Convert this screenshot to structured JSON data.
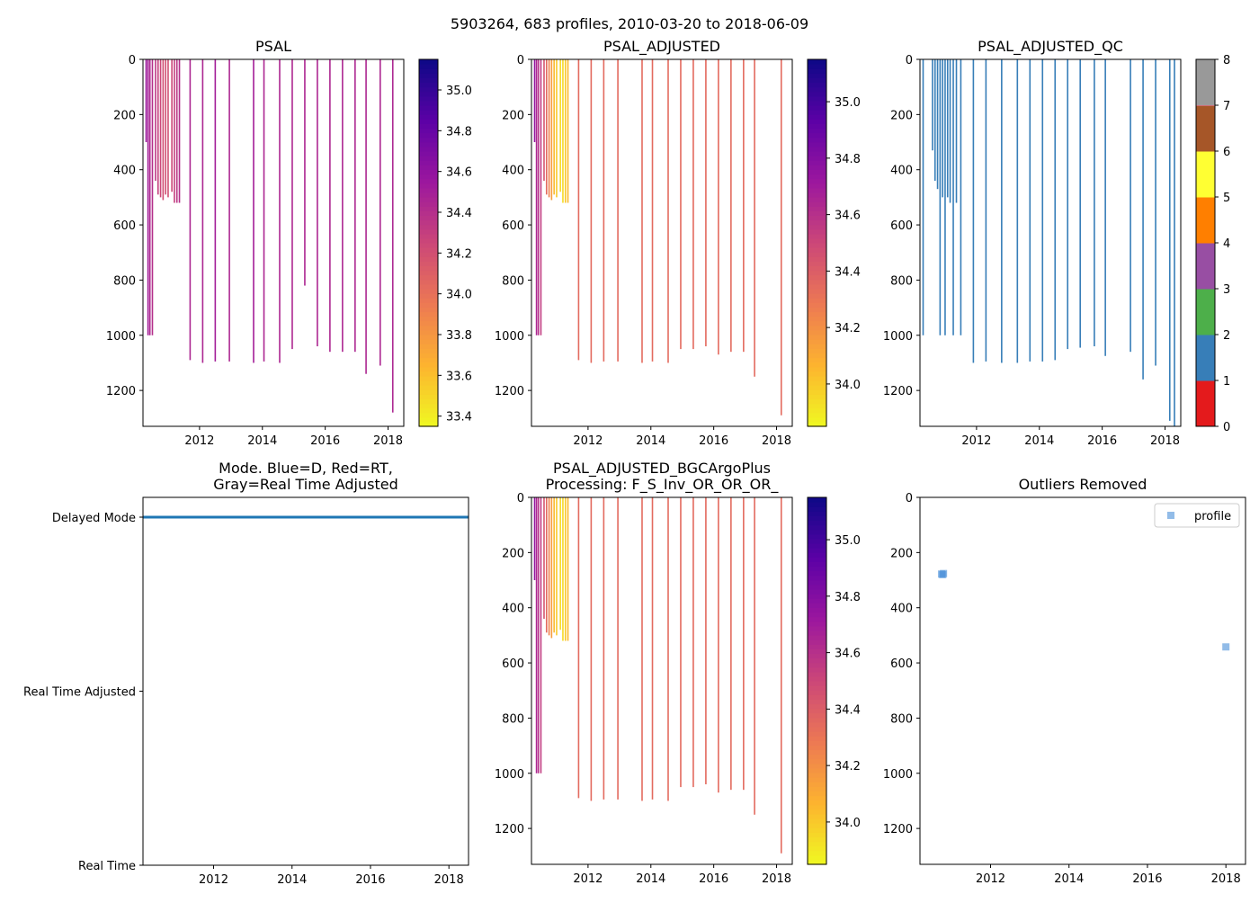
{
  "suptitle": "5903264, 683 profiles, 2010-03-20 to 2018-06-09",
  "colors": {
    "qc_blue": "#377eb8",
    "mode_line": "#1f77b4",
    "outlier_marker": "#4a90d9",
    "plasma_stops": [
      "#f0f921",
      "#fdb42f",
      "#ed7953",
      "#cc4778",
      "#9c179e",
      "#5c01a6",
      "#0d0887"
    ],
    "qc_classes": [
      "#e41a1c",
      "#377eb8",
      "#4daf4a",
      "#984ea3",
      "#ff7f00",
      "#ffff33",
      "#a65628",
      "#f781bf",
      "#999999"
    ]
  },
  "chart_data": [
    {
      "id": "psal",
      "type": "profile_section",
      "title": "PSAL",
      "xlim": [
        2010.2,
        2018.5
      ],
      "ylim": [
        1330,
        0
      ],
      "xticks": [
        "2012",
        "2014",
        "2016",
        "2018"
      ],
      "yticks": [
        "0",
        "200",
        "400",
        "600",
        "800",
        "1000",
        "1200"
      ],
      "colorbar": {
        "cmap": "plasma",
        "range": [
          33.35,
          35.15
        ],
        "ticks": [
          "33.4",
          "33.6",
          "33.8",
          "34.0",
          "34.2",
          "34.4",
          "34.6",
          "34.8",
          "35.0"
        ]
      },
      "profiles": [
        {
          "date": 2010.3,
          "depth": 300,
          "value": 34.55
        },
        {
          "date": 2010.36,
          "depth": 1000,
          "value": 34.5
        },
        {
          "date": 2010.42,
          "depth": 1000,
          "value": 34.45
        },
        {
          "date": 2010.5,
          "depth": 1000,
          "value": 34.4
        },
        {
          "date": 2010.6,
          "depth": 440,
          "value": 34.35
        },
        {
          "date": 2010.68,
          "depth": 490,
          "value": 34.3
        },
        {
          "date": 2010.76,
          "depth": 500,
          "value": 34.25
        },
        {
          "date": 2010.84,
          "depth": 510,
          "value": 34.2
        },
        {
          "date": 2010.92,
          "depth": 490,
          "value": 34.2
        },
        {
          "date": 2011.0,
          "depth": 500,
          "value": 34.2
        },
        {
          "date": 2011.12,
          "depth": 480,
          "value": 34.25
        },
        {
          "date": 2011.2,
          "depth": 520,
          "value": 34.3
        },
        {
          "date": 2011.28,
          "depth": 520,
          "value": 34.35
        },
        {
          "date": 2011.36,
          "depth": 520,
          "value": 34.4
        },
        {
          "date": 2011.7,
          "depth": 1090,
          "value": 34.45
        },
        {
          "date": 2012.1,
          "depth": 1100,
          "value": 34.45
        },
        {
          "date": 2012.5,
          "depth": 1095,
          "value": 34.5
        },
        {
          "date": 2012.95,
          "depth": 1095,
          "value": 34.45
        },
        {
          "date": 2013.72,
          "depth": 1100,
          "value": 34.5
        },
        {
          "date": 2014.05,
          "depth": 1095,
          "value": 34.45
        },
        {
          "date": 2014.55,
          "depth": 1100,
          "value": 34.45
        },
        {
          "date": 2014.95,
          "depth": 1050,
          "value": 34.45
        },
        {
          "date": 2015.35,
          "depth": 820,
          "value": 34.45
        },
        {
          "date": 2015.75,
          "depth": 1040,
          "value": 34.45
        },
        {
          "date": 2016.15,
          "depth": 1060,
          "value": 34.45
        },
        {
          "date": 2016.55,
          "depth": 1060,
          "value": 34.45
        },
        {
          "date": 2016.95,
          "depth": 1060,
          "value": 34.45
        },
        {
          "date": 2017.3,
          "depth": 1140,
          "value": 34.45
        },
        {
          "date": 2017.75,
          "depth": 1110,
          "value": 34.45
        },
        {
          "date": 2018.15,
          "depth": 1280,
          "value": 34.45
        }
      ]
    },
    {
      "id": "psal_adjusted",
      "type": "profile_section",
      "title": "PSAL_ADJUSTED",
      "xlim": [
        2010.2,
        2018.5
      ],
      "ylim": [
        1330,
        0
      ],
      "xticks": [
        "2012",
        "2014",
        "2016",
        "2018"
      ],
      "yticks": [
        "0",
        "200",
        "400",
        "600",
        "800",
        "1000",
        "1200"
      ],
      "colorbar": {
        "cmap": "plasma",
        "range": [
          33.85,
          35.15
        ],
        "ticks": [
          "34.0",
          "34.2",
          "34.4",
          "34.6",
          "34.8",
          "35.0"
        ]
      },
      "profiles": [
        {
          "date": 2010.3,
          "depth": 300,
          "value": 34.75
        },
        {
          "date": 2010.36,
          "depth": 1000,
          "value": 34.65
        },
        {
          "date": 2010.42,
          "depth": 1000,
          "value": 34.6
        },
        {
          "date": 2010.5,
          "depth": 1000,
          "value": 34.55
        },
        {
          "date": 2010.6,
          "depth": 440,
          "value": 34.45
        },
        {
          "date": 2010.68,
          "depth": 490,
          "value": 34.35
        },
        {
          "date": 2010.76,
          "depth": 500,
          "value": 34.25
        },
        {
          "date": 2010.84,
          "depth": 510,
          "value": 34.15
        },
        {
          "date": 2010.92,
          "depth": 490,
          "value": 34.05
        },
        {
          "date": 2011.0,
          "depth": 500,
          "value": 34.0
        },
        {
          "date": 2011.12,
          "depth": 480,
          "value": 33.95
        },
        {
          "date": 2011.2,
          "depth": 520,
          "value": 33.95
        },
        {
          "date": 2011.28,
          "depth": 520,
          "value": 34.0
        },
        {
          "date": 2011.36,
          "depth": 520,
          "value": 34.05
        },
        {
          "date": 2011.7,
          "depth": 1090,
          "value": 34.35
        },
        {
          "date": 2012.1,
          "depth": 1100,
          "value": 34.35
        },
        {
          "date": 2012.5,
          "depth": 1095,
          "value": 34.35
        },
        {
          "date": 2012.95,
          "depth": 1095,
          "value": 34.35
        },
        {
          "date": 2013.72,
          "depth": 1100,
          "value": 34.35
        },
        {
          "date": 2014.05,
          "depth": 1095,
          "value": 34.35
        },
        {
          "date": 2014.55,
          "depth": 1100,
          "value": 34.35
        },
        {
          "date": 2014.95,
          "depth": 1050,
          "value": 34.35
        },
        {
          "date": 2015.35,
          "depth": 1050,
          "value": 34.35
        },
        {
          "date": 2015.75,
          "depth": 1040,
          "value": 34.35
        },
        {
          "date": 2016.15,
          "depth": 1070,
          "value": 34.35
        },
        {
          "date": 2016.55,
          "depth": 1060,
          "value": 34.35
        },
        {
          "date": 2016.95,
          "depth": 1060,
          "value": 34.35
        },
        {
          "date": 2017.3,
          "depth": 1150,
          "value": 34.35
        },
        {
          "date": 2018.15,
          "depth": 1290,
          "value": 34.35
        }
      ]
    },
    {
      "id": "psal_adjusted_qc",
      "type": "profile_section",
      "title": "PSAL_ADJUSTED_QC",
      "xlim": [
        2010.2,
        2018.5
      ],
      "ylim": [
        1330,
        0
      ],
      "xticks": [
        "2012",
        "2014",
        "2016",
        "2018"
      ],
      "yticks": [
        "0",
        "200",
        "400",
        "600",
        "800",
        "1000",
        "1200"
      ],
      "colorbar": {
        "cmap": "qc",
        "range": [
          0,
          8
        ],
        "ticks": [
          "0",
          "1",
          "2",
          "3",
          "4",
          "5",
          "6",
          "7",
          "8"
        ]
      },
      "profiles": [
        {
          "date": 2010.3,
          "depth": 1000,
          "value": 1
        },
        {
          "date": 2010.6,
          "depth": 330,
          "value": 1
        },
        {
          "date": 2010.68,
          "depth": 440,
          "value": 1
        },
        {
          "date": 2010.76,
          "depth": 470,
          "value": 1
        },
        {
          "date": 2010.84,
          "depth": 1000,
          "value": 1
        },
        {
          "date": 2010.92,
          "depth": 500,
          "value": 1
        },
        {
          "date": 2011.0,
          "depth": 1000,
          "value": 1
        },
        {
          "date": 2011.08,
          "depth": 500,
          "value": 1
        },
        {
          "date": 2011.16,
          "depth": 520,
          "value": 1
        },
        {
          "date": 2011.26,
          "depth": 1000,
          "value": 1
        },
        {
          "date": 2011.36,
          "depth": 520,
          "value": 1
        },
        {
          "date": 2011.5,
          "depth": 1000,
          "value": 1
        },
        {
          "date": 2011.9,
          "depth": 1100,
          "value": 1
        },
        {
          "date": 2012.3,
          "depth": 1095,
          "value": 1
        },
        {
          "date": 2012.8,
          "depth": 1100,
          "value": 1
        },
        {
          "date": 2013.3,
          "depth": 1100,
          "value": 1
        },
        {
          "date": 2013.7,
          "depth": 1095,
          "value": 1
        },
        {
          "date": 2014.1,
          "depth": 1095,
          "value": 1
        },
        {
          "date": 2014.5,
          "depth": 1090,
          "value": 1
        },
        {
          "date": 2014.9,
          "depth": 1050,
          "value": 1
        },
        {
          "date": 2015.3,
          "depth": 1045,
          "value": 1
        },
        {
          "date": 2015.75,
          "depth": 1040,
          "value": 1
        },
        {
          "date": 2016.1,
          "depth": 1075,
          "value": 1
        },
        {
          "date": 2016.9,
          "depth": 1060,
          "value": 1
        },
        {
          "date": 2017.3,
          "depth": 1160,
          "value": 1
        },
        {
          "date": 2017.7,
          "depth": 1110,
          "value": 1
        },
        {
          "date": 2018.15,
          "depth": 1310,
          "value": 1
        },
        {
          "date": 2018.3,
          "depth": 1330,
          "value": 1
        }
      ]
    },
    {
      "id": "mode",
      "type": "line",
      "title": "Mode. Blue=D, Red=RT,\nGray=Real Time Adjusted",
      "xlim": [
        2010.2,
        2018.5
      ],
      "yticks": [
        "Real Time",
        "Real Time Adjusted",
        "Delayed Mode"
      ],
      "xticks": [
        "2012",
        "2014",
        "2016",
        "2018"
      ],
      "series": [
        {
          "name": "Delayed Mode",
          "x": [
            2010.2,
            2018.5
          ],
          "y": [
            2,
            2
          ]
        }
      ]
    },
    {
      "id": "psal_adjusted_bgc",
      "type": "profile_section",
      "title": "PSAL_ADJUSTED_BGCArgoPlus\nProcessing: F_S_Inv_OR_OR_OR_",
      "xlim": [
        2010.2,
        2018.5
      ],
      "ylim": [
        1330,
        0
      ],
      "xticks": [
        "2012",
        "2014",
        "2016",
        "2018"
      ],
      "yticks": [
        "0",
        "200",
        "400",
        "600",
        "800",
        "1000",
        "1200"
      ],
      "colorbar": {
        "cmap": "plasma",
        "range": [
          33.85,
          35.15
        ],
        "ticks": [
          "34.0",
          "34.2",
          "34.4",
          "34.6",
          "34.8",
          "35.0"
        ]
      },
      "profiles": [
        {
          "date": 2010.3,
          "depth": 300,
          "value": 34.75
        },
        {
          "date": 2010.36,
          "depth": 1000,
          "value": 34.65
        },
        {
          "date": 2010.42,
          "depth": 1000,
          "value": 34.6
        },
        {
          "date": 2010.5,
          "depth": 1000,
          "value": 34.55
        },
        {
          "date": 2010.6,
          "depth": 440,
          "value": 34.45
        },
        {
          "date": 2010.68,
          "depth": 490,
          "value": 34.35
        },
        {
          "date": 2010.76,
          "depth": 500,
          "value": 34.25
        },
        {
          "date": 2010.84,
          "depth": 510,
          "value": 34.15
        },
        {
          "date": 2010.92,
          "depth": 490,
          "value": 34.05
        },
        {
          "date": 2011.0,
          "depth": 500,
          "value": 34.0
        },
        {
          "date": 2011.12,
          "depth": 480,
          "value": 33.95
        },
        {
          "date": 2011.2,
          "depth": 520,
          "value": 33.95
        },
        {
          "date": 2011.28,
          "depth": 520,
          "value": 34.0
        },
        {
          "date": 2011.36,
          "depth": 520,
          "value": 34.05
        },
        {
          "date": 2011.7,
          "depth": 1090,
          "value": 34.35
        },
        {
          "date": 2012.1,
          "depth": 1100,
          "value": 34.35
        },
        {
          "date": 2012.5,
          "depth": 1095,
          "value": 34.35
        },
        {
          "date": 2012.95,
          "depth": 1095,
          "value": 34.35
        },
        {
          "date": 2013.72,
          "depth": 1100,
          "value": 34.35
        },
        {
          "date": 2014.05,
          "depth": 1095,
          "value": 34.35
        },
        {
          "date": 2014.55,
          "depth": 1100,
          "value": 34.35
        },
        {
          "date": 2014.95,
          "depth": 1050,
          "value": 34.35
        },
        {
          "date": 2015.35,
          "depth": 1050,
          "value": 34.35
        },
        {
          "date": 2015.75,
          "depth": 1040,
          "value": 34.35
        },
        {
          "date": 2016.15,
          "depth": 1070,
          "value": 34.35
        },
        {
          "date": 2016.55,
          "depth": 1060,
          "value": 34.35
        },
        {
          "date": 2016.95,
          "depth": 1060,
          "value": 34.35
        },
        {
          "date": 2017.3,
          "depth": 1150,
          "value": 34.35
        },
        {
          "date": 2018.15,
          "depth": 1290,
          "value": 34.35
        }
      ]
    },
    {
      "id": "outliers",
      "type": "scatter",
      "title": "Outliers Removed",
      "xlim": [
        2010.2,
        2018.5
      ],
      "ylim": [
        1330,
        0
      ],
      "xticks": [
        "2012",
        "2014",
        "2016",
        "2018"
      ],
      "yticks": [
        "0",
        "200",
        "400",
        "600",
        "800",
        "1000",
        "1200"
      ],
      "legend": {
        "label": "profile",
        "position": "top-right"
      },
      "points": [
        {
          "x": 2010.75,
          "y": 278
        },
        {
          "x": 2010.78,
          "y": 280
        },
        {
          "x": 2010.8,
          "y": 276
        },
        {
          "x": 2018.0,
          "y": 542
        }
      ]
    }
  ]
}
